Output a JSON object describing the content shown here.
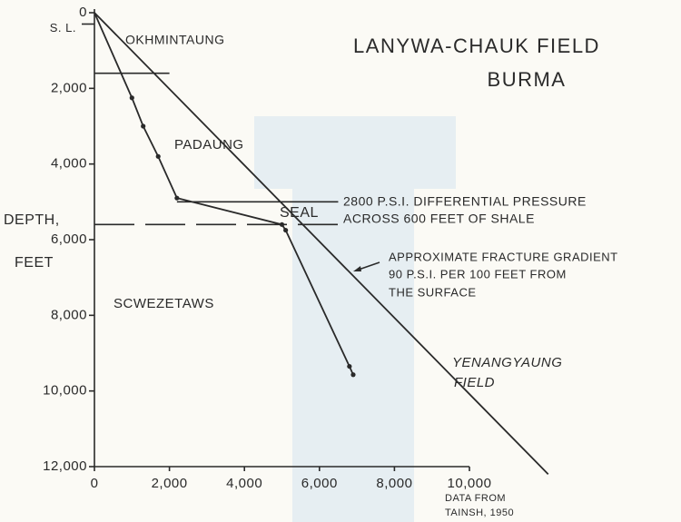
{
  "chart_data": {
    "type": "line",
    "title": "LANYWA-CHAUK FIELD",
    "subtitle": "BURMA",
    "ylabel": [
      "DEPTH,",
      "FEET"
    ],
    "xlim": [
      0,
      10000
    ],
    "ylim": [
      0,
      12000
    ],
    "y_inverted": true,
    "xticks": [
      0,
      {
        "value": 2000,
        "label": "2,000"
      },
      {
        "value": 4000,
        "label": "4,000"
      },
      {
        "value": 6000,
        "label": "6,000"
      },
      {
        "value": 8000,
        "label": "8,000"
      },
      {
        "value": 10000,
        "label": "10,000"
      }
    ],
    "yticks": [
      0,
      {
        "value": 2000,
        "label": "2,000"
      },
      {
        "value": 4000,
        "label": "4,000"
      },
      {
        "value": 6000,
        "label": "6,000"
      },
      {
        "value": 8000,
        "label": "8,000"
      },
      {
        "value": 10000,
        "label": "10,000"
      },
      {
        "value": 12000,
        "label": "12,000"
      }
    ],
    "sea_level": {
      "value": 300,
      "label": "S. L."
    },
    "series": [
      {
        "color": "#2a2a2a",
        "markers": true,
        "x": [
          0,
          1000,
          1300,
          1700,
          2200,
          5000,
          5100,
          6800,
          6900
        ],
        "values": [
          0,
          2250,
          3000,
          3800,
          4900,
          5600,
          5750,
          9350,
          9570
        ]
      },
      {
        "color": "#2a2a2a",
        "markers": false,
        "x": [
          0,
          12100
        ],
        "values": [
          0,
          12200
        ]
      }
    ],
    "hlines": [
      {
        "value": 1600,
        "x": [
          0,
          2000
        ],
        "style": "solid"
      },
      {
        "value": 5000,
        "x": [
          2200,
          6500
        ],
        "style": "solid"
      },
      {
        "value": 5600,
        "x": [
          0,
          6500
        ],
        "style": "dashed"
      }
    ],
    "annotations": [
      "OKHMINTAUNG",
      "PADAUNG",
      "SEAL",
      "SCWEZETAWS",
      "2800 P.S.I. DIFFERENTIAL PRESSURE",
      "ACROSS 600 FEET OF SHALE",
      "APPROXIMATE FRACTURE GRADIENT",
      "90 P.S.I. PER 100 FEET FROM",
      "THE SURFACE",
      "YENANGYAUNG",
      "FIELD",
      "DATA FROM",
      "TAINSH, 1950"
    ]
  }
}
